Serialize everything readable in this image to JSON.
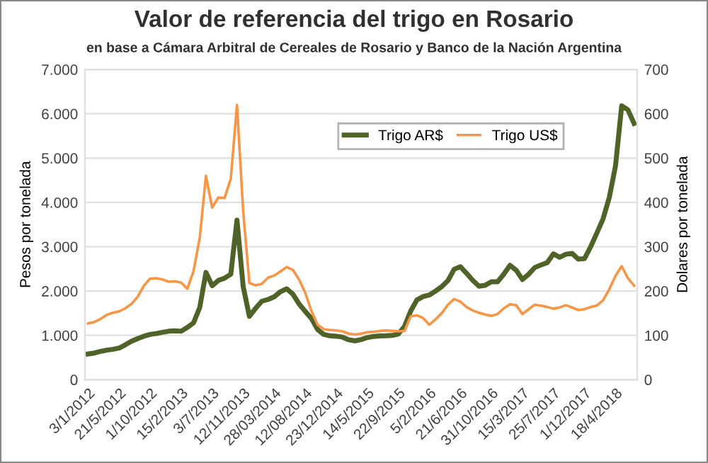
{
  "chart_data": {
    "type": "line",
    "title": "Valor de referencia del trigo en Rosario",
    "subtitle": "en base a Cámara Arbitral de Cereales de Rosario y Banco de la Nación Argentina",
    "ylabel": "Pesos por tonelada",
    "y2label": "Dolares por tonelada",
    "categories": [
      "3/1/2012",
      null,
      null,
      null,
      null,
      "21/5/2012",
      null,
      null,
      null,
      null,
      "1/10/2012",
      null,
      null,
      null,
      null,
      "15/2/2013",
      null,
      null,
      null,
      null,
      "3/7/2013",
      null,
      null,
      null,
      null,
      "12/11/2013",
      null,
      null,
      null,
      null,
      "28/03/2014",
      null,
      null,
      null,
      null,
      "12/08/2014",
      null,
      null,
      null,
      null,
      "23/12/2014",
      null,
      null,
      null,
      null,
      "14/5/2015",
      null,
      null,
      null,
      null,
      "22/9/2015",
      null,
      null,
      null,
      null,
      "5/2/2016",
      null,
      null,
      null,
      null,
      "21/6/2016",
      null,
      null,
      null,
      null,
      "31/10/2016",
      null,
      null,
      null,
      null,
      "15/3/2017",
      null,
      null,
      null,
      null,
      "25/7/2017",
      null,
      null,
      null,
      null,
      "1/12/2017",
      null,
      null,
      null,
      null,
      "18/4/2018",
      null,
      null,
      null
    ],
    "series": [
      {
        "name": "Trigo AR$",
        "color": "#4f6228",
        "values": [
          580,
          600,
          636,
          665,
          685,
          712,
          786,
          868,
          928,
          980,
          1020,
          1041,
          1070,
          1094,
          1104,
          1093,
          1179,
          1282,
          1630,
          2420,
          2120,
          2240,
          2290,
          2380,
          3600,
          2100,
          1430,
          1610,
          1770,
          1810,
          1870,
          1985,
          2050,
          1930,
          1710,
          1540,
          1380,
          1130,
          1020,
          990,
          980,
          960,
          900,
          875,
          905,
          950,
          975,
          986,
          990,
          998,
          1030,
          1200,
          1550,
          1800,
          1875,
          1910,
          2000,
          2100,
          2235,
          2490,
          2550,
          2400,
          2240,
          2110,
          2130,
          2210,
          2210,
          2380,
          2580,
          2470,
          2260,
          2380,
          2530,
          2590,
          2640,
          2840,
          2760,
          2830,
          2850,
          2720,
          2730,
          3000,
          3310,
          3630,
          4110,
          4820,
          6180,
          6090,
          5780
        ]
      },
      {
        "name": "Trigo US$",
        "color": "#f79646",
        "axis": "y2",
        "values": [
          127,
          130,
          137,
          146,
          151,
          154,
          161,
          171,
          187,
          212,
          228,
          229,
          226,
          221,
          222,
          219,
          205,
          245,
          320,
          460,
          388,
          411,
          410,
          453,
          620,
          380,
          218,
          213,
          216,
          230,
          235,
          244,
          254,
          248,
          226,
          196,
          155,
          124,
          114,
          112,
          111,
          109,
          104,
          102,
          104,
          107,
          108,
          110,
          111,
          110,
          109,
          110,
          143,
          145,
          139,
          124,
          136,
          150,
          169,
          182,
          176,
          164,
          156,
          151,
          147,
          144,
          148,
          161,
          170,
          168,
          148,
          159,
          169,
          167,
          164,
          160,
          163,
          168,
          163,
          157,
          159,
          164,
          167,
          179,
          204,
          234,
          256,
          229,
          212
        ]
      }
    ],
    "ylim": [
      0,
      7000
    ],
    "yticks": [
      0,
      {
        "value": 1000,
        "label": "1.000"
      },
      {
        "value": 2000,
        "label": "2.000"
      },
      {
        "value": 3000,
        "label": "3.000"
      },
      {
        "value": 4000,
        "label": "4.000"
      },
      {
        "value": 5000,
        "label": "5.000"
      },
      {
        "value": 6000,
        "label": "6.000"
      },
      {
        "value": 7000,
        "label": "7.000"
      }
    ],
    "y2lim": [
      0,
      700
    ],
    "y2ticks": [
      0,
      100,
      200,
      300,
      400,
      500,
      600,
      700
    ],
    "grid": "y",
    "legend": "top right",
    "marker": "none",
    "line_style": "solid"
  }
}
